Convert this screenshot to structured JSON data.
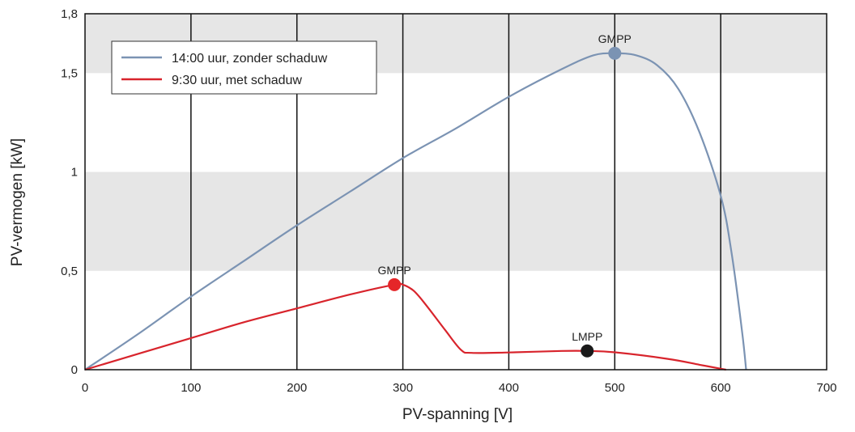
{
  "chart_data": {
    "type": "line",
    "title": "",
    "xlabel": "PV-spanning [V]",
    "ylabel": "PV-vermogen [kW]",
    "xlim": [
      0,
      700
    ],
    "ylim": [
      0,
      1.8
    ],
    "x_ticks": [
      0,
      100,
      200,
      300,
      400,
      500,
      600,
      700
    ],
    "x_tick_labels": [
      "0",
      "100",
      "200",
      "300",
      "400",
      "500",
      "600",
      "700"
    ],
    "y_ticks": [
      0,
      0.5,
      1,
      1.5,
      1.8
    ],
    "y_tick_labels": [
      "0",
      "0,5",
      "1",
      "1,5",
      "1,8"
    ],
    "grid": "vertical lines at x ticks; alternating grey bands",
    "bands": [
      [
        0.5,
        1.0
      ],
      [
        1.5,
        1.8
      ]
    ],
    "legend_position": "top-left",
    "series": [
      {
        "name": "14:00 uur, zonder schaduw",
        "color": "#7b93b3",
        "points": [
          [
            0,
            0
          ],
          [
            50,
            0.18
          ],
          [
            100,
            0.37
          ],
          [
            150,
            0.55
          ],
          [
            200,
            0.73
          ],
          [
            250,
            0.9
          ],
          [
            300,
            1.07
          ],
          [
            350,
            1.22
          ],
          [
            400,
            1.38
          ],
          [
            450,
            1.52
          ],
          [
            480,
            1.59
          ],
          [
            500,
            1.6
          ],
          [
            520,
            1.59
          ],
          [
            540,
            1.54
          ],
          [
            560,
            1.42
          ],
          [
            580,
            1.2
          ],
          [
            600,
            0.88
          ],
          [
            610,
            0.6
          ],
          [
            620,
            0.2
          ],
          [
            624,
            0
          ]
        ]
      },
      {
        "name": "9:30 uur, met schaduw",
        "color": "#d8242c",
        "points": [
          [
            0,
            0
          ],
          [
            50,
            0.08
          ],
          [
            100,
            0.16
          ],
          [
            150,
            0.24
          ],
          [
            200,
            0.31
          ],
          [
            250,
            0.38
          ],
          [
            292,
            0.43
          ],
          [
            300,
            0.43
          ],
          [
            310,
            0.4
          ],
          [
            320,
            0.34
          ],
          [
            340,
            0.2
          ],
          [
            355,
            0.1
          ],
          [
            365,
            0.085
          ],
          [
            400,
            0.087
          ],
          [
            450,
            0.095
          ],
          [
            474,
            0.095
          ],
          [
            500,
            0.088
          ],
          [
            550,
            0.055
          ],
          [
            580,
            0.025
          ],
          [
            605,
            0
          ]
        ]
      }
    ],
    "markers": [
      {
        "label": "GMPP",
        "x": 500,
        "y": 1.6,
        "color": "#7b93b3",
        "series": "14:00 uur, zonder schaduw"
      },
      {
        "label": "GMPP",
        "x": 292,
        "y": 0.43,
        "color": "#e52629",
        "series": "9:30 uur, met schaduw"
      },
      {
        "label": "LMPP",
        "x": 474,
        "y": 0.095,
        "color": "#1a1a1a",
        "series": "9:30 uur, met schaduw"
      }
    ]
  }
}
